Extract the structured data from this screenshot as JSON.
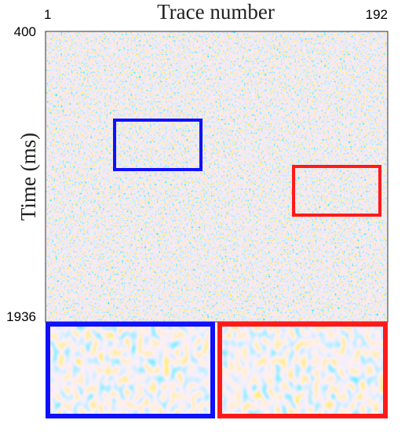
{
  "chart_data": {
    "type": "image",
    "xlabel": "Trace number",
    "ylabel": "Time (ms)",
    "xlim": [
      1,
      192
    ],
    "xticks": [
      1,
      192
    ],
    "ylim": [
      400,
      1936
    ],
    "yticks": [
      400,
      1936
    ]
  }
}
